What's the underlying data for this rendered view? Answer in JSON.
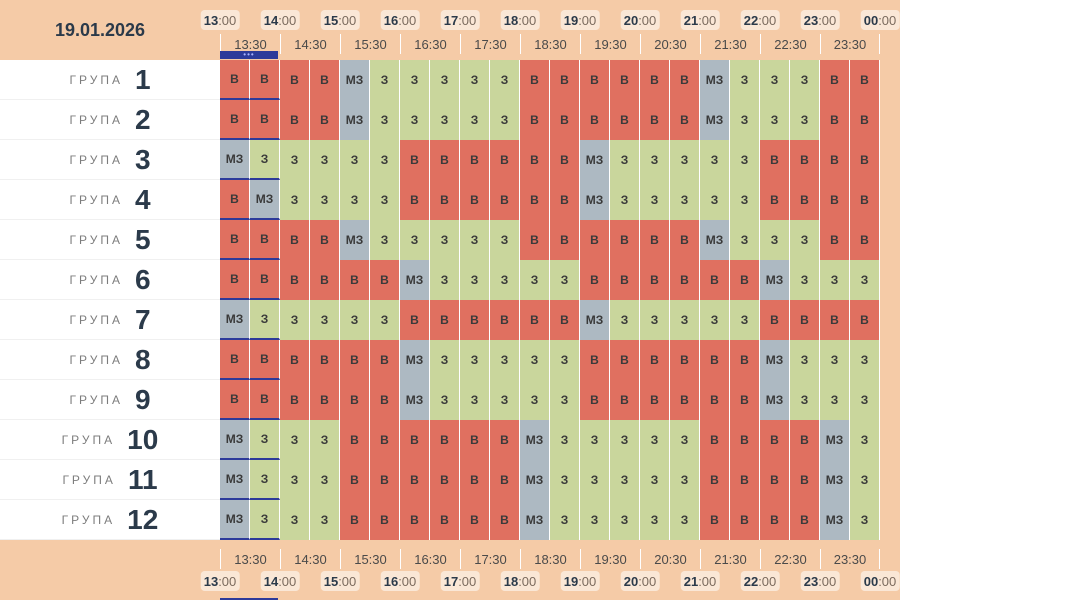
{
  "date": "19.01.2026",
  "hours": [
    "13",
    "14",
    "15",
    "16",
    "17",
    "18",
    "19",
    "20",
    "21",
    "22",
    "23",
    "00"
  ],
  "minutes_suffix": ":00",
  "half_hours": [
    "13:30",
    "14:30",
    "15:30",
    "16:30",
    "17:30",
    "18:30",
    "19:30",
    "20:30",
    "21:30",
    "22:30",
    "23:30"
  ],
  "group_word": "ГРУПА",
  "now_marker_dots": "•••",
  "cell_types": {
    "v": "В",
    "z": "З",
    "mz": "МЗ"
  },
  "colors": {
    "v": "#e07060",
    "z": "#c9d69c",
    "mz": "#adb9c2",
    "now": "#2d3a9a"
  },
  "groups": [
    {
      "number": "1",
      "slots": [
        "v",
        "v",
        "v",
        "v",
        "mz",
        "z",
        "z",
        "z",
        "z",
        "z",
        "v",
        "v",
        "v",
        "v",
        "v",
        "v",
        "mz",
        "z",
        "z",
        "z",
        "v",
        "v"
      ]
    },
    {
      "number": "2",
      "slots": [
        "v",
        "v",
        "v",
        "v",
        "mz",
        "z",
        "z",
        "z",
        "z",
        "z",
        "v",
        "v",
        "v",
        "v",
        "v",
        "v",
        "mz",
        "z",
        "z",
        "z",
        "v",
        "v"
      ]
    },
    {
      "number": "3",
      "slots": [
        "mz",
        "z",
        "z",
        "z",
        "z",
        "z",
        "v",
        "v",
        "v",
        "v",
        "v",
        "v",
        "mz",
        "z",
        "z",
        "z",
        "z",
        "z",
        "v",
        "v",
        "v",
        "v"
      ]
    },
    {
      "number": "4",
      "slots": [
        "v",
        "mz",
        "z",
        "z",
        "z",
        "z",
        "v",
        "v",
        "v",
        "v",
        "v",
        "v",
        "mz",
        "z",
        "z",
        "z",
        "z",
        "z",
        "v",
        "v",
        "v",
        "v"
      ]
    },
    {
      "number": "5",
      "slots": [
        "v",
        "v",
        "v",
        "v",
        "mz",
        "z",
        "z",
        "z",
        "z",
        "z",
        "v",
        "v",
        "v",
        "v",
        "v",
        "v",
        "mz",
        "z",
        "z",
        "z",
        "v",
        "v"
      ]
    },
    {
      "number": "6",
      "slots": [
        "v",
        "v",
        "v",
        "v",
        "v",
        "v",
        "mz",
        "z",
        "z",
        "z",
        "z",
        "z",
        "v",
        "v",
        "v",
        "v",
        "v",
        "v",
        "mz",
        "z",
        "z",
        "z"
      ]
    },
    {
      "number": "7",
      "slots": [
        "mz",
        "z",
        "z",
        "z",
        "z",
        "z",
        "v",
        "v",
        "v",
        "v",
        "v",
        "v",
        "mz",
        "z",
        "z",
        "z",
        "z",
        "z",
        "v",
        "v",
        "v",
        "v"
      ]
    },
    {
      "number": "8",
      "slots": [
        "v",
        "v",
        "v",
        "v",
        "v",
        "v",
        "mz",
        "z",
        "z",
        "z",
        "z",
        "z",
        "v",
        "v",
        "v",
        "v",
        "v",
        "v",
        "mz",
        "z",
        "z",
        "z"
      ]
    },
    {
      "number": "9",
      "slots": [
        "v",
        "v",
        "v",
        "v",
        "v",
        "v",
        "mz",
        "z",
        "z",
        "z",
        "z",
        "z",
        "v",
        "v",
        "v",
        "v",
        "v",
        "v",
        "mz",
        "z",
        "z",
        "z"
      ]
    },
    {
      "number": "10",
      "slots": [
        "mz",
        "z",
        "z",
        "z",
        "v",
        "v",
        "v",
        "v",
        "v",
        "v",
        "mz",
        "z",
        "z",
        "z",
        "z",
        "z",
        "v",
        "v",
        "v",
        "v",
        "mz",
        "z"
      ]
    },
    {
      "number": "11",
      "slots": [
        "mz",
        "z",
        "z",
        "z",
        "v",
        "v",
        "v",
        "v",
        "v",
        "v",
        "mz",
        "z",
        "z",
        "z",
        "z",
        "z",
        "v",
        "v",
        "v",
        "v",
        "mz",
        "z"
      ]
    },
    {
      "number": "12",
      "slots": [
        "mz",
        "z",
        "z",
        "z",
        "v",
        "v",
        "v",
        "v",
        "v",
        "v",
        "mz",
        "z",
        "z",
        "z",
        "z",
        "z",
        "v",
        "v",
        "v",
        "v",
        "mz",
        "z"
      ]
    }
  ]
}
